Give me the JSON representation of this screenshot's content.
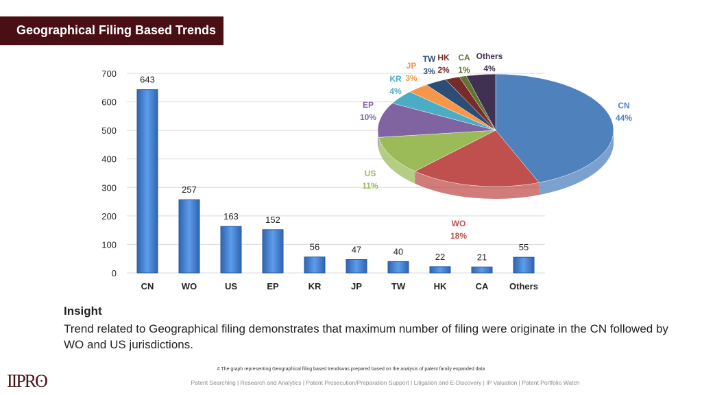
{
  "header": {
    "title": "Geographical Filing Based Trends"
  },
  "chart_data": [
    {
      "type": "bar",
      "categories": [
        "CN",
        "WO",
        "US",
        "EP",
        "KR",
        "JP",
        "TW",
        "HK",
        "CA",
        "Others"
      ],
      "values": [
        643,
        257,
        163,
        152,
        56,
        47,
        40,
        22,
        21,
        55
      ],
      "yticks": [
        "0",
        "100",
        "200",
        "300",
        "400",
        "500",
        "600",
        "700"
      ],
      "ylim": [
        0,
        700
      ],
      "grid": true,
      "color": "#3a7bd5"
    },
    {
      "type": "pie",
      "categories": [
        "CN",
        "WO",
        "US",
        "EP",
        "KR",
        "JP",
        "TW",
        "HK",
        "CA",
        "Others"
      ],
      "values": [
        44,
        18,
        11,
        10,
        4,
        3,
        3,
        2,
        1,
        4
      ],
      "labels": [
        "44%",
        "18%",
        "11%",
        "10%",
        "4%",
        "3%",
        "3%",
        "2%",
        "1%",
        "4%"
      ],
      "colors": [
        "#4f81bd",
        "#c0504d",
        "#9bbb59",
        "#8064a2",
        "#4bacc6",
        "#f79646",
        "#2c4d75",
        "#772c2a",
        "#5f7530",
        "#403152"
      ],
      "label_colors": [
        "#4f81bd",
        "#c0504d",
        "#9bbb59",
        "#8064a2",
        "#4bacc6",
        "#f79646",
        "#2c4d75",
        "#772c2a",
        "#5f7530",
        "#403152"
      ]
    }
  ],
  "insight": {
    "heading": "Insight",
    "text": "Trend related to Geographical filing demonstrates that maximum number of filing were originate in the CN followed by WO and US jurisdictions."
  },
  "note": "# The graph representing Geographical filing based trendswas prepared based on the analysis of patent family expanded data",
  "footer": "Patent Searching | Research and Analytics | Patent Prosecution/Preparation Support | Litigation and E-Discovery | IP Valuation | Patent Portfolio Watch",
  "logo": "IIPRD"
}
